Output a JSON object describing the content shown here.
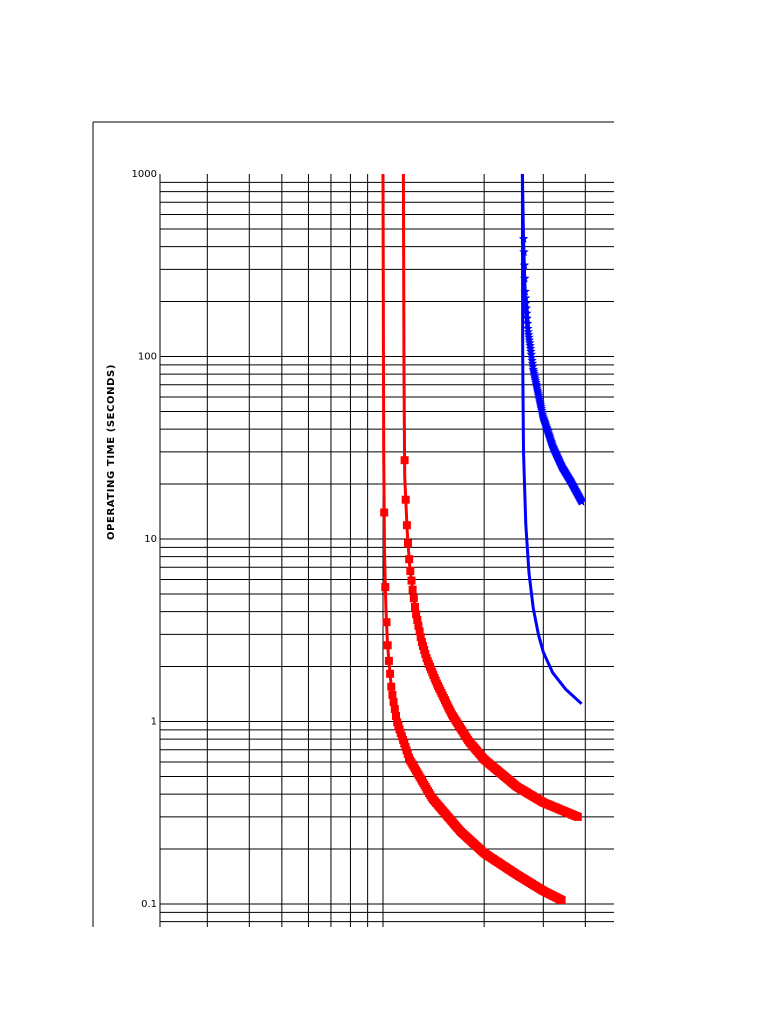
{
  "chart_data": {
    "type": "line",
    "title": "",
    "xlabel": "",
    "ylabel": "OPERATING TIME (SECONDS)",
    "yscale": "log",
    "xscale": "log",
    "ylim": [
      0.075,
      1000
    ],
    "y_ticks": [
      {
        "value": 1000,
        "label": "1000"
      },
      {
        "value": 100,
        "label": "100"
      },
      {
        "value": 10,
        "label": "10"
      },
      {
        "value": 1,
        "label": "1"
      },
      {
        "value": 0.1,
        "label": "0.1"
      }
    ],
    "x_tick_labels_visible": false,
    "grid": true,
    "legend": "none",
    "series": [
      {
        "color": "#ff0000",
        "marker": "square",
        "pickup": 1.0,
        "points": [
          [
            1.0,
            1000
          ],
          [
            1.005,
            30
          ],
          [
            1.01,
            8.4
          ],
          [
            1.02,
            4.2
          ],
          [
            1.03,
            2.8
          ],
          [
            1.04,
            2.2
          ],
          [
            1.06,
            1.5
          ],
          [
            1.1,
            1.0
          ],
          [
            1.2,
            0.62
          ],
          [
            1.4,
            0.38
          ],
          [
            1.7,
            0.25
          ],
          [
            2.0,
            0.19
          ],
          [
            2.5,
            0.145
          ],
          [
            3.0,
            0.118
          ],
          [
            3.4,
            0.105
          ]
        ]
      },
      {
        "color": "#ff0000",
        "marker": "square",
        "pickup": 1.15,
        "points": [
          [
            1.15,
            1000
          ],
          [
            1.155,
            80
          ],
          [
            1.16,
            22
          ],
          [
            1.18,
            11
          ],
          [
            1.2,
            7.2
          ],
          [
            1.22,
            5.6
          ],
          [
            1.25,
            4.0
          ],
          [
            1.3,
            2.8
          ],
          [
            1.35,
            2.2
          ],
          [
            1.45,
            1.6
          ],
          [
            1.6,
            1.1
          ],
          [
            1.8,
            0.78
          ],
          [
            2.0,
            0.62
          ],
          [
            2.5,
            0.44
          ],
          [
            3.0,
            0.36
          ],
          [
            3.8,
            0.3
          ]
        ]
      },
      {
        "color": "#0000ff",
        "marker": "star",
        "pickup": 2.6,
        "points": [
          [
            2.6,
            1000
          ],
          [
            2.62,
            450
          ],
          [
            2.65,
            220
          ],
          [
            2.7,
            140
          ],
          [
            2.75,
            110
          ],
          [
            2.8,
            85
          ],
          [
            2.9,
            62
          ],
          [
            3.0,
            46
          ],
          [
            3.2,
            32
          ],
          [
            3.4,
            25
          ],
          [
            3.6,
            21
          ],
          [
            3.9,
            16
          ]
        ]
      },
      {
        "color": "#0000ff",
        "marker": "none",
        "pickup": 2.6,
        "points": [
          [
            2.6,
            1000
          ],
          [
            2.605,
            100
          ],
          [
            2.62,
            30
          ],
          [
            2.66,
            12
          ],
          [
            2.72,
            6.5
          ],
          [
            2.8,
            4.2
          ],
          [
            2.9,
            3.0
          ],
          [
            3.0,
            2.4
          ],
          [
            3.2,
            1.85
          ],
          [
            3.5,
            1.5
          ],
          [
            3.9,
            1.25
          ]
        ]
      }
    ]
  },
  "colors": {
    "background": "#ffffff",
    "grid": "#000000",
    "frame": "#000000",
    "series_red": "#ff0000",
    "series_blue": "#0000ff"
  }
}
